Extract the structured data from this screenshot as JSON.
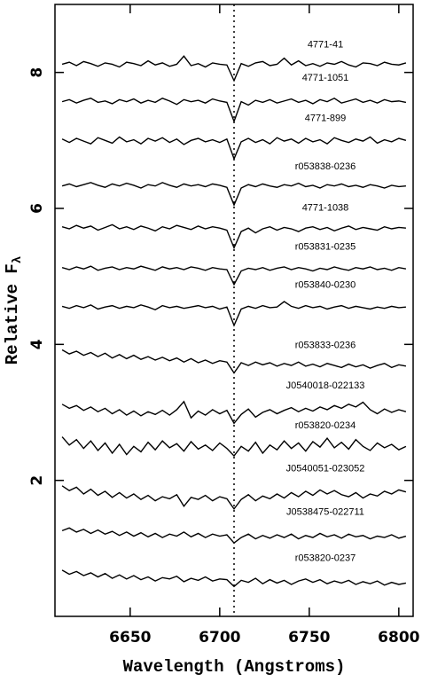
{
  "chart_data": {
    "type": "line",
    "x_label": "Wavelength (Angstroms)",
    "y_label": "Relative F",
    "y_label_subscript": "λ",
    "xlim": [
      6608,
      6808
    ],
    "xticks": [
      6650,
      6700,
      6750,
      6800
    ],
    "ylim": [
      0,
      9
    ],
    "yticks": [
      2,
      4,
      6,
      8
    ],
    "reference_line_x": 6708,
    "line_color": "#000000",
    "x": [
      6612,
      6616,
      6620,
      6624,
      6628,
      6632,
      6636,
      6640,
      6644,
      6648,
      6652,
      6656,
      6660,
      6664,
      6668,
      6672,
      6676,
      6680,
      6684,
      6688,
      6692,
      6696,
      6700,
      6704,
      6708,
      6712,
      6716,
      6720,
      6724,
      6728,
      6732,
      6736,
      6740,
      6744,
      6748,
      6752,
      6756,
      6760,
      6764,
      6768,
      6772,
      6776,
      6780,
      6784,
      6788,
      6792,
      6796,
      6800,
      6804
    ],
    "series": [
      {
        "name": "4771-41",
        "values": [
          8.12,
          8.15,
          8.1,
          8.16,
          8.13,
          8.09,
          8.14,
          8.12,
          8.08,
          8.15,
          8.13,
          8.1,
          8.17,
          8.11,
          8.14,
          8.09,
          8.12,
          8.24,
          8.1,
          8.13,
          8.08,
          8.14,
          8.12,
          8.11,
          7.88,
          8.13,
          8.09,
          8.14,
          8.16,
          8.1,
          8.12,
          8.21,
          8.11,
          8.17,
          8.1,
          8.13,
          8.09,
          8.14,
          8.12,
          8.16,
          8.11,
          8.08,
          8.14,
          8.13,
          8.1,
          8.15,
          8.12,
          8.11,
          8.14
        ]
      },
      {
        "name": "4771-1051",
        "values": [
          7.57,
          7.6,
          7.55,
          7.59,
          7.62,
          7.56,
          7.58,
          7.54,
          7.6,
          7.57,
          7.61,
          7.55,
          7.59,
          7.56,
          7.62,
          7.58,
          7.53,
          7.6,
          7.57,
          7.59,
          7.55,
          7.61,
          7.58,
          7.56,
          7.28,
          7.57,
          7.52,
          7.59,
          7.56,
          7.6,
          7.55,
          7.58,
          7.61,
          7.56,
          7.59,
          7.54,
          7.6,
          7.57,
          7.62,
          7.55,
          7.58,
          7.61,
          7.56,
          7.59,
          7.55,
          7.6,
          7.57,
          7.58,
          7.56
        ]
      },
      {
        "name": "4771-899",
        "values": [
          7.02,
          6.97,
          7.03,
          6.99,
          6.95,
          7.04,
          7.0,
          6.96,
          7.05,
          6.98,
          7.01,
          6.95,
          7.03,
          6.99,
          7.04,
          6.97,
          7.02,
          6.94,
          7.0,
          7.03,
          6.98,
          7.01,
          6.97,
          7.02,
          6.73,
          6.98,
          7.03,
          6.97,
          7.01,
          6.95,
          7.04,
          6.99,
          7.02,
          6.96,
          7.03,
          6.98,
          7.01,
          6.95,
          7.04,
          7.0,
          6.97,
          7.02,
          6.99,
          7.05,
          6.96,
          7.01,
          6.98,
          7.03,
          7.0
        ]
      },
      {
        "name": "r053838-0236",
        "values": [
          6.33,
          6.36,
          6.32,
          6.35,
          6.38,
          6.34,
          6.31,
          6.36,
          6.33,
          6.37,
          6.34,
          6.3,
          6.35,
          6.33,
          6.38,
          6.34,
          6.31,
          6.36,
          6.33,
          6.35,
          6.32,
          6.36,
          6.34,
          6.31,
          6.05,
          6.3,
          6.35,
          6.32,
          6.36,
          6.33,
          6.31,
          6.35,
          6.33,
          6.37,
          6.32,
          6.34,
          6.3,
          6.35,
          6.33,
          6.36,
          6.32,
          6.34,
          6.31,
          6.35,
          6.33,
          6.3,
          6.34,
          6.32,
          6.33
        ]
      },
      {
        "name": "4771-1038",
        "values": [
          5.73,
          5.7,
          5.75,
          5.71,
          5.74,
          5.68,
          5.72,
          5.76,
          5.7,
          5.73,
          5.69,
          5.74,
          5.71,
          5.67,
          5.73,
          5.7,
          5.75,
          5.72,
          5.69,
          5.74,
          5.7,
          5.73,
          5.71,
          5.68,
          5.42,
          5.66,
          5.71,
          5.64,
          5.7,
          5.73,
          5.68,
          5.72,
          5.7,
          5.66,
          5.71,
          5.73,
          5.69,
          5.72,
          5.67,
          5.71,
          5.74,
          5.69,
          5.72,
          5.7,
          5.68,
          5.73,
          5.7,
          5.72,
          5.71
        ]
      },
      {
        "name": "r053831-0235",
        "values": [
          5.13,
          5.1,
          5.14,
          5.11,
          5.15,
          5.09,
          5.12,
          5.14,
          5.1,
          5.13,
          5.11,
          5.15,
          5.12,
          5.09,
          5.14,
          5.11,
          5.13,
          5.1,
          5.14,
          5.12,
          5.09,
          5.13,
          5.11,
          5.1,
          4.88,
          5.08,
          5.12,
          5.1,
          5.13,
          5.09,
          5.12,
          5.14,
          5.1,
          5.13,
          5.11,
          5.08,
          5.12,
          5.1,
          5.14,
          5.11,
          5.09,
          5.13,
          5.11,
          5.14,
          5.1,
          5.12,
          5.09,
          5.13,
          5.11
        ]
      },
      {
        "name": "r053840-0230",
        "values": [
          4.56,
          4.53,
          4.57,
          4.54,
          4.58,
          4.52,
          4.55,
          4.57,
          4.53,
          4.56,
          4.54,
          4.58,
          4.55,
          4.51,
          4.57,
          4.54,
          4.56,
          4.53,
          4.55,
          4.57,
          4.54,
          4.56,
          4.52,
          4.55,
          4.28,
          4.52,
          4.56,
          4.53,
          4.57,
          4.54,
          4.55,
          4.63,
          4.56,
          4.53,
          4.57,
          4.54,
          4.56,
          4.52,
          4.55,
          4.57,
          4.53,
          4.56,
          4.54,
          4.52,
          4.55,
          4.53,
          4.56,
          4.54,
          4.55
        ]
      },
      {
        "name": "r053833-0236",
        "values": [
          3.92,
          3.86,
          3.9,
          3.84,
          3.88,
          3.82,
          3.87,
          3.8,
          3.85,
          3.79,
          3.84,
          3.78,
          3.82,
          3.77,
          3.81,
          3.76,
          3.8,
          3.74,
          3.79,
          3.73,
          3.77,
          3.72,
          3.76,
          3.74,
          3.58,
          3.73,
          3.69,
          3.74,
          3.7,
          3.73,
          3.68,
          3.72,
          3.69,
          3.74,
          3.68,
          3.71,
          3.67,
          3.72,
          3.69,
          3.66,
          3.71,
          3.67,
          3.7,
          3.65,
          3.69,
          3.72,
          3.66,
          3.7,
          3.68
        ]
      },
      {
        "name": "J0540018-022133",
        "values": [
          3.12,
          3.06,
          3.1,
          3.03,
          3.08,
          3.01,
          3.06,
          2.98,
          3.04,
          2.96,
          3.02,
          2.95,
          3.01,
          2.97,
          3.03,
          2.96,
          3.04,
          3.16,
          2.92,
          3.02,
          2.96,
          3.04,
          2.98,
          3.03,
          2.84,
          2.97,
          3.05,
          2.93,
          3.0,
          3.04,
          2.98,
          3.03,
          3.07,
          3.01,
          3.06,
          3.02,
          3.08,
          3.04,
          3.1,
          3.06,
          3.12,
          3.08,
          3.15,
          3.04,
          2.98,
          3.05,
          3.0,
          3.04,
          3.01
        ]
      },
      {
        "name": "r053820-0234",
        "values": [
          2.64,
          2.52,
          2.6,
          2.47,
          2.58,
          2.44,
          2.55,
          2.4,
          2.53,
          2.38,
          2.5,
          2.42,
          2.56,
          2.45,
          2.58,
          2.48,
          2.54,
          2.43,
          2.57,
          2.46,
          2.52,
          2.44,
          2.55,
          2.47,
          2.36,
          2.5,
          2.43,
          2.56,
          2.4,
          2.52,
          2.45,
          2.58,
          2.47,
          2.55,
          2.43,
          2.57,
          2.49,
          2.62,
          2.48,
          2.56,
          2.46,
          2.6,
          2.5,
          2.44,
          2.55,
          2.48,
          2.53,
          2.45,
          2.5
        ]
      },
      {
        "name": "J0540051-023052",
        "values": [
          1.92,
          1.85,
          1.9,
          1.8,
          1.87,
          1.78,
          1.84,
          1.75,
          1.82,
          1.74,
          1.8,
          1.72,
          1.78,
          1.7,
          1.76,
          1.73,
          1.79,
          1.62,
          1.75,
          1.72,
          1.78,
          1.7,
          1.76,
          1.73,
          1.58,
          1.72,
          1.79,
          1.7,
          1.77,
          1.73,
          1.8,
          1.74,
          1.82,
          1.76,
          1.84,
          1.78,
          1.86,
          1.8,
          1.85,
          1.79,
          1.76,
          1.82,
          1.74,
          1.8,
          1.77,
          1.84,
          1.8,
          1.86,
          1.83
        ]
      },
      {
        "name": "J0538475-022711",
        "values": [
          1.26,
          1.3,
          1.24,
          1.28,
          1.22,
          1.27,
          1.21,
          1.25,
          1.19,
          1.24,
          1.18,
          1.23,
          1.17,
          1.22,
          1.16,
          1.21,
          1.18,
          1.24,
          1.17,
          1.22,
          1.16,
          1.21,
          1.18,
          1.2,
          1.08,
          1.16,
          1.21,
          1.14,
          1.19,
          1.15,
          1.2,
          1.16,
          1.21,
          1.14,
          1.19,
          1.16,
          1.22,
          1.17,
          1.2,
          1.15,
          1.21,
          1.17,
          1.19,
          1.14,
          1.18,
          1.16,
          1.2,
          1.15,
          1.18
        ]
      },
      {
        "name": "r053820-0237",
        "values": [
          0.68,
          0.62,
          0.66,
          0.6,
          0.64,
          0.58,
          0.63,
          0.56,
          0.61,
          0.55,
          0.6,
          0.54,
          0.58,
          0.52,
          0.57,
          0.55,
          0.59,
          0.51,
          0.56,
          0.53,
          0.58,
          0.52,
          0.55,
          0.54,
          0.44,
          0.53,
          0.5,
          0.56,
          0.48,
          0.54,
          0.49,
          0.53,
          0.47,
          0.52,
          0.55,
          0.5,
          0.54,
          0.48,
          0.52,
          0.49,
          0.53,
          0.47,
          0.51,
          0.48,
          0.52,
          0.46,
          0.5,
          0.47,
          0.49
        ]
      }
    ]
  }
}
